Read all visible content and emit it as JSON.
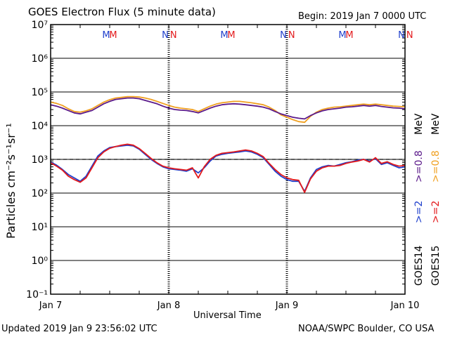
{
  "header": {
    "title": "GOES Electron Flux (5 minute data)",
    "begin": "Begin: 2019 Jan 7 0000 UTC"
  },
  "footer": {
    "updated": "Updated 2019 Jan  9 23:56:02 UTC",
    "source": "NOAA/SWPC Boulder, CO USA"
  },
  "legend": {
    "goes14": "GOES14",
    "goes15": "GOES15",
    "ge2_14": ">=2",
    "ge2_15": ">=2",
    "ge08_14": ">=0.8",
    "ge08_15": ">=0.8",
    "mev_a": "MeV",
    "mev_b": "MeV"
  },
  "colors": {
    "goes14_ge2": "#1f3fcc",
    "goes15_ge2": "#e31a1c",
    "goes14_ge08": "#5b1a8a",
    "goes15_ge08": "#f0a020",
    "threshold": "#000000"
  },
  "chart_data": {
    "type": "line",
    "xlabel": "Universal Time",
    "ylabel": "Particles cm⁻²s⁻¹sr⁻¹",
    "ylim_log10": [
      -1,
      7
    ],
    "y_tick_labels": [
      "10⁷",
      "10⁶",
      "10⁵",
      "10⁴",
      "10³",
      "10²",
      "10¹",
      "10⁰",
      "10⁻¹"
    ],
    "y_tick_exponents": [
      7,
      6,
      5,
      4,
      3,
      2,
      1,
      0,
      -1
    ],
    "x_range_days": [
      "2019-01-07",
      "2019-01-10"
    ],
    "x_tick_labels": [
      "Jan 7",
      "Jan 8",
      "Jan 9",
      "Jan 10"
    ],
    "threshold_value": 1000,
    "markers": [
      {
        "day": 0.47,
        "letter": "M",
        "color": "#1f3fcc"
      },
      {
        "day": 0.53,
        "letter": "M",
        "color": "#e31a1c"
      },
      {
        "day": 0.97,
        "letter": "N",
        "color": "#1f3fcc"
      },
      {
        "day": 1.04,
        "letter": "N",
        "color": "#e31a1c"
      },
      {
        "day": 1.47,
        "letter": "M",
        "color": "#1f3fcc"
      },
      {
        "day": 1.53,
        "letter": "M",
        "color": "#e31a1c"
      },
      {
        "day": 1.97,
        "letter": "N",
        "color": "#1f3fcc"
      },
      {
        "day": 2.04,
        "letter": "N",
        "color": "#e31a1c"
      },
      {
        "day": 2.47,
        "letter": "M",
        "color": "#1f3fcc"
      },
      {
        "day": 2.53,
        "letter": "M",
        "color": "#e31a1c"
      },
      {
        "day": 2.97,
        "letter": "N",
        "color": "#1f3fcc"
      },
      {
        "day": 3.04,
        "letter": "N",
        "color": "#e31a1c"
      }
    ],
    "series": [
      {
        "name": "GOES14 >=2 MeV",
        "color": "#1f3fcc",
        "x_days": [
          0.0,
          0.05,
          0.1,
          0.15,
          0.2,
          0.25,
          0.3,
          0.35,
          0.4,
          0.45,
          0.5,
          0.55,
          0.6,
          0.65,
          0.7,
          0.75,
          0.8,
          0.85,
          0.9,
          0.95,
          1.0,
          1.05,
          1.1,
          1.15,
          1.2,
          1.25,
          1.3,
          1.35,
          1.4,
          1.45,
          1.5,
          1.55,
          1.6,
          1.65,
          1.7,
          1.75,
          1.8,
          1.85,
          1.9,
          1.95,
          2.0,
          2.05,
          2.1,
          2.15,
          2.2,
          2.25,
          2.3,
          2.35,
          2.4,
          2.45,
          2.5,
          2.55,
          2.6,
          2.65,
          2.7,
          2.75,
          2.8,
          2.85,
          2.9,
          2.95,
          3.0
        ],
        "log10_y": [
          2.92,
          2.83,
          2.7,
          2.55,
          2.45,
          2.35,
          2.5,
          2.8,
          3.1,
          3.25,
          3.35,
          3.38,
          3.4,
          3.42,
          3.4,
          3.3,
          3.15,
          3.0,
          2.88,
          2.78,
          2.72,
          2.7,
          2.68,
          2.65,
          2.72,
          2.6,
          2.75,
          2.95,
          3.1,
          3.15,
          3.18,
          3.2,
          3.22,
          3.25,
          3.22,
          3.15,
          3.05,
          2.85,
          2.65,
          2.5,
          2.4,
          2.35,
          2.35,
          2.05,
          2.45,
          2.7,
          2.78,
          2.82,
          2.8,
          2.85,
          2.9,
          2.93,
          2.98,
          3.0,
          2.95,
          3.02,
          2.85,
          2.9,
          2.82,
          2.75,
          2.78
        ]
      },
      {
        "name": "GOES15 >=2 MeV",
        "color": "#e31a1c",
        "x_days": [
          0.0,
          0.05,
          0.1,
          0.15,
          0.2,
          0.25,
          0.3,
          0.35,
          0.4,
          0.45,
          0.5,
          0.55,
          0.6,
          0.65,
          0.7,
          0.75,
          0.8,
          0.85,
          0.9,
          0.95,
          1.0,
          1.05,
          1.1,
          1.15,
          1.2,
          1.25,
          1.3,
          1.35,
          1.4,
          1.45,
          1.5,
          1.55,
          1.6,
          1.65,
          1.7,
          1.75,
          1.8,
          1.85,
          1.9,
          1.95,
          2.0,
          2.05,
          2.1,
          2.15,
          2.2,
          2.25,
          2.3,
          2.35,
          2.4,
          2.45,
          2.5,
          2.55,
          2.6,
          2.65,
          2.7,
          2.75,
          2.8,
          2.85,
          2.9,
          2.95,
          3.0
        ],
        "log10_y": [
          2.9,
          2.8,
          2.68,
          2.5,
          2.4,
          2.32,
          2.45,
          2.75,
          3.05,
          3.22,
          3.33,
          3.38,
          3.42,
          3.45,
          3.42,
          3.32,
          3.18,
          3.03,
          2.9,
          2.8,
          2.75,
          2.72,
          2.7,
          2.68,
          2.75,
          2.45,
          2.78,
          3.0,
          3.12,
          3.18,
          3.2,
          3.22,
          3.25,
          3.28,
          3.25,
          3.18,
          3.08,
          2.88,
          2.7,
          2.55,
          2.45,
          2.4,
          2.38,
          2.02,
          2.42,
          2.65,
          2.75,
          2.8,
          2.8,
          2.82,
          2.88,
          2.92,
          2.95,
          3.0,
          2.92,
          3.05,
          2.88,
          2.93,
          2.85,
          2.8,
          2.82
        ]
      },
      {
        "name": "GOES14 >=0.8 MeV",
        "color": "#5b1a8a",
        "x_days": [
          0.0,
          0.05,
          0.1,
          0.15,
          0.2,
          0.25,
          0.3,
          0.35,
          0.4,
          0.45,
          0.5,
          0.55,
          0.6,
          0.65,
          0.7,
          0.75,
          0.8,
          0.85,
          0.9,
          0.95,
          1.0,
          1.05,
          1.1,
          1.15,
          1.2,
          1.25,
          1.3,
          1.35,
          1.4,
          1.45,
          1.5,
          1.55,
          1.6,
          1.65,
          1.7,
          1.75,
          1.8,
          1.85,
          1.9,
          1.95,
          2.0,
          2.05,
          2.1,
          2.15,
          2.2,
          2.25,
          2.3,
          2.35,
          2.4,
          2.45,
          2.5,
          2.55,
          2.6,
          2.65,
          2.7,
          2.75,
          2.8,
          2.85,
          2.9,
          2.95,
          3.0
        ],
        "log10_y": [
          4.62,
          4.58,
          4.52,
          4.45,
          4.38,
          4.35,
          4.4,
          4.45,
          4.55,
          4.65,
          4.72,
          4.78,
          4.8,
          4.82,
          4.82,
          4.8,
          4.75,
          4.7,
          4.65,
          4.58,
          4.52,
          4.48,
          4.46,
          4.45,
          4.42,
          4.38,
          4.45,
          4.52,
          4.58,
          4.62,
          4.64,
          4.65,
          4.64,
          4.62,
          4.6,
          4.58,
          4.55,
          4.5,
          4.42,
          4.35,
          4.3,
          4.25,
          4.22,
          4.2,
          4.3,
          4.38,
          4.44,
          4.48,
          4.5,
          4.52,
          4.55,
          4.56,
          4.58,
          4.6,
          4.58,
          4.6,
          4.57,
          4.55,
          4.53,
          4.52,
          4.5
        ]
      },
      {
        "name": "GOES15 >=0.8 MeV",
        "color": "#f0a020",
        "x_days": [
          0.0,
          0.05,
          0.1,
          0.15,
          0.2,
          0.25,
          0.3,
          0.35,
          0.4,
          0.45,
          0.5,
          0.55,
          0.6,
          0.65,
          0.7,
          0.75,
          0.8,
          0.85,
          0.9,
          0.95,
          1.0,
          1.05,
          1.1,
          1.15,
          1.2,
          1.25,
          1.3,
          1.35,
          1.4,
          1.45,
          1.5,
          1.55,
          1.6,
          1.65,
          1.7,
          1.75,
          1.8,
          1.85,
          1.9,
          1.95,
          2.0,
          2.05,
          2.1,
          2.15,
          2.2,
          2.25,
          2.3,
          2.35,
          2.4,
          2.45,
          2.5,
          2.55,
          2.6,
          2.65,
          2.7,
          2.75,
          2.8,
          2.85,
          2.9,
          2.95,
          3.0
        ],
        "log10_y": [
          4.7,
          4.66,
          4.6,
          4.5,
          4.42,
          4.4,
          4.44,
          4.5,
          4.6,
          4.7,
          4.77,
          4.82,
          4.84,
          4.86,
          4.86,
          4.85,
          4.82,
          4.78,
          4.72,
          4.66,
          4.6,
          4.55,
          4.52,
          4.5,
          4.48,
          4.42,
          4.5,
          4.58,
          4.64,
          4.68,
          4.7,
          4.72,
          4.72,
          4.7,
          4.68,
          4.65,
          4.62,
          4.55,
          4.45,
          4.32,
          4.25,
          4.18,
          4.12,
          4.1,
          4.28,
          4.4,
          4.48,
          4.52,
          4.55,
          4.56,
          4.58,
          4.6,
          4.62,
          4.64,
          4.62,
          4.64,
          4.62,
          4.6,
          4.58,
          4.57,
          4.56
        ]
      }
    ]
  }
}
